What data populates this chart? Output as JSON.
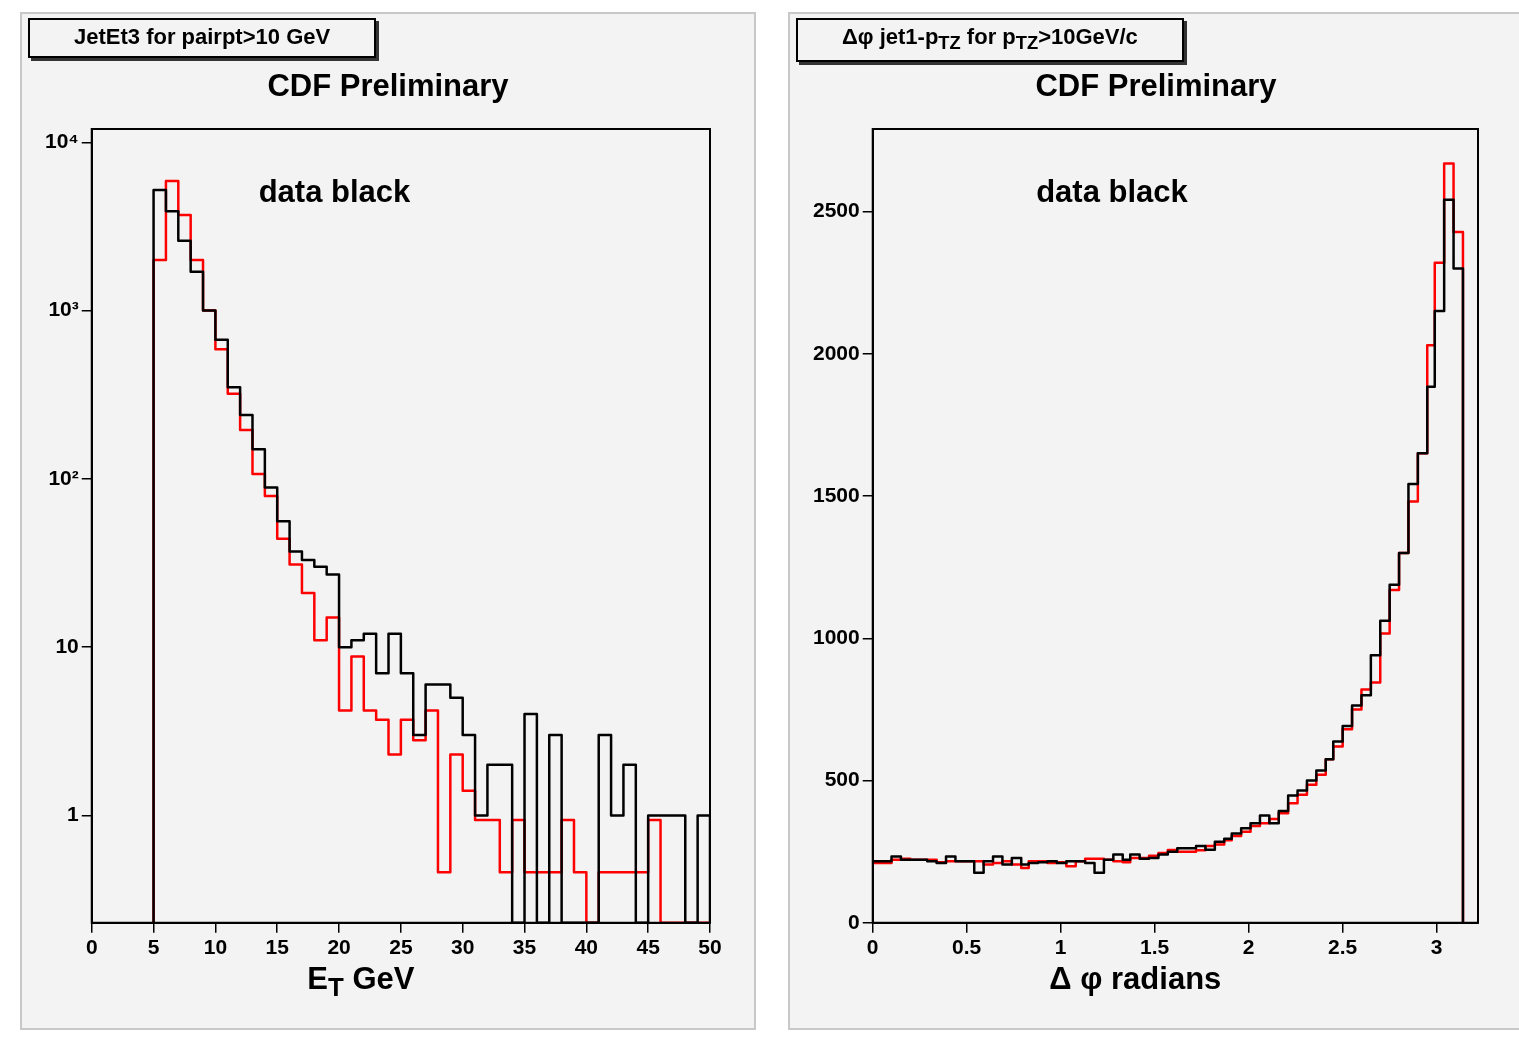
{
  "chart_data": [
    {
      "type": "histogram",
      "title": "JetEt3 for pairpt>10 GeV",
      "subtitle": "CDF Preliminary",
      "xlabel": "E$_{T}$ GeV",
      "annotations": [
        "data black"
      ],
      "log": true,
      "bins": [
        5,
        6,
        7,
        8,
        9,
        10,
        11,
        12,
        13,
        14,
        15,
        16,
        17,
        18,
        19,
        20,
        21,
        22,
        23,
        24,
        25,
        26,
        27,
        28,
        29,
        30,
        31,
        32,
        33,
        34,
        35,
        36,
        37,
        38,
        39,
        40,
        41,
        42,
        43,
        44,
        45,
        46,
        47,
        48,
        49,
        50
      ],
      "series": [
        {
          "color": "#000000",
          "values": [
            5200,
            3900,
            2600,
            1700,
            1000,
            670,
            350,
            240,
            150,
            89,
            56,
            37,
            33,
            30,
            27,
            10,
            11,
            12,
            7,
            12,
            7,
            3,
            6,
            6,
            5,
            3,
            1,
            2,
            2,
            null,
            4,
            null,
            3,
            null,
            null,
            null,
            3,
            1,
            2,
            null,
            1,
            1,
            1,
            null,
            1
          ]
        },
        {
          "color": "#ff0000",
          "values": [
            2000,
            5900,
            3700,
            2000,
            1000,
            590,
            320,
            195,
            107,
            79,
            44,
            31,
            21,
            11,
            15,
            4.2,
            8.8,
            4.2,
            3.7,
            2.3,
            3.7,
            2.8,
            4.2,
            0.46,
            2.3,
            1.4,
            0.94,
            0.94,
            0.46,
            0.94,
            0.46,
            0.46,
            0.46,
            0.94,
            0.46,
            null,
            0.46,
            0.46,
            0.46,
            0.46,
            0.94,
            null,
            null,
            null,
            null
          ]
        }
      ],
      "xlim": [
        0,
        50
      ],
      "xticks": [
        0,
        5,
        10,
        15,
        20,
        25,
        30,
        35,
        40,
        45,
        50
      ],
      "ylim": [
        0.23,
        12000
      ],
      "yticks": [
        1,
        10,
        {
          "value": 100,
          "label": "10²"
        },
        {
          "value": 1000,
          "label": "10³"
        },
        {
          "value": 10000,
          "label": "10⁴"
        }
      ]
    },
    {
      "type": "histogram",
      "title": "Δφ jet1-p$_{TZ}$ for p$_{TZ}$>10GeV/c",
      "subtitle": "CDF Preliminary",
      "xlabel": "Δ φ radians",
      "annotations": [
        "data black"
      ],
      "bins": [
        0,
        0.05,
        0.1,
        0.15,
        0.2,
        0.25,
        0.29,
        0.34,
        0.39,
        0.44,
        0.49,
        0.54,
        0.59,
        0.64,
        0.69,
        0.74,
        0.79,
        0.83,
        0.88,
        0.93,
        0.98,
        1.03,
        1.08,
        1.13,
        1.18,
        1.23,
        1.28,
        1.33,
        1.37,
        1.42,
        1.47,
        1.52,
        1.57,
        1.62,
        1.67,
        1.72,
        1.77,
        1.82,
        1.87,
        1.91,
        1.96,
        2.01,
        2.06,
        2.11,
        2.16,
        2.21,
        2.26,
        2.31,
        2.36,
        2.41,
        2.45,
        2.5,
        2.55,
        2.6,
        2.65,
        2.7,
        2.75,
        2.8,
        2.85,
        2.9,
        2.95,
        2.99,
        3.04,
        3.09,
        3.14
      ],
      "series": [
        {
          "color": "#000000",
          "values": [
            216,
            216,
            233,
            222,
            222,
            222,
            216,
            210,
            233,
            216,
            216,
            176,
            216,
            233,
            205,
            228,
            205,
            210,
            213,
            216,
            210,
            216,
            216,
            210,
            176,
            222,
            240,
            222,
            240,
            225,
            228,
            240,
            250,
            262,
            262,
            270,
            257,
            285,
            295,
            314,
            332,
            350,
            377,
            350,
            393,
            447,
            465,
            500,
            535,
            575,
            637,
            692,
            764,
            800,
            940,
            1062,
            1188,
            1300,
            1542,
            1650,
            1884,
            2150,
            2541,
            2300
          ]
        },
        {
          "color": "#ff0000",
          "values": [
            210,
            210,
            222,
            225,
            222,
            222,
            222,
            213,
            216,
            216,
            216,
            216,
            205,
            210,
            216,
            205,
            193,
            216,
            216,
            210,
            213,
            199,
            216,
            225,
            225,
            222,
            216,
            213,
            228,
            228,
            236,
            245,
            256,
            250,
            250,
            255,
            270,
            275,
            290,
            305,
            320,
            340,
            350,
            365,
            385,
            420,
            450,
            485,
            520,
            575,
            620,
            680,
            750,
            820,
            845,
            1017,
            1170,
            1300,
            1481,
            1650,
            2030,
            2320,
            2669,
            2428
          ]
        }
      ],
      "xlim": [
        0,
        3.22
      ],
      "xticks": [
        0,
        0.5,
        1,
        1.5,
        2,
        2.5,
        3
      ],
      "ylim": [
        0,
        2790
      ],
      "yticks": [
        0,
        500,
        1000,
        1500,
        2000,
        2500
      ]
    }
  ]
}
